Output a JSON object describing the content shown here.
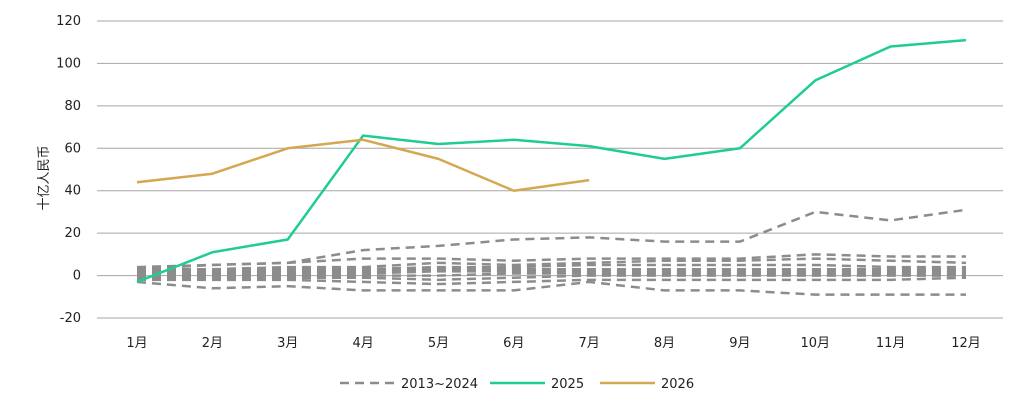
{
  "chart_data": {
    "type": "line",
    "ylabel": "十亿人民币",
    "xlabel": "",
    "categories": [
      "1月",
      "2月",
      "3月",
      "4月",
      "5月",
      "6月",
      "7月",
      "8月",
      "9月",
      "10月",
      "11月",
      "12月"
    ],
    "ylim": [
      -20,
      120
    ],
    "yticks": [
      120,
      100,
      80,
      60,
      40,
      20,
      0,
      -20
    ],
    "grid": "horizontal",
    "legend_position": "bottom",
    "legend": [
      "2013~2024",
      "2025",
      "2026"
    ],
    "series": [
      {
        "name": "2025",
        "color": "#1fce8e",
        "style": "solid",
        "values": [
          -3,
          11,
          17,
          66,
          62,
          64,
          61,
          55,
          60,
          92,
          108,
          111
        ]
      },
      {
        "name": "2026",
        "color": "#d4a850",
        "style": "solid",
        "values": [
          44,
          48,
          60,
          64,
          55,
          40,
          45,
          null,
          null,
          null,
          null,
          null
        ]
      },
      {
        "name": "2013~2024",
        "color": "#8c8c8c",
        "style": "dashed",
        "values": [
          3,
          5,
          6,
          12,
          14,
          17,
          18,
          16,
          16,
          30,
          26,
          31
        ]
      },
      {
        "name": "2013~2024",
        "color": "#8c8c8c",
        "style": "dashed",
        "values": [
          -3,
          -6,
          -5,
          -7,
          -7,
          -7,
          -3,
          -7,
          -7,
          -9,
          -9,
          -9
        ]
      },
      {
        "name": "2013~2024",
        "color": "#8c8c8c",
        "style": "dashed",
        "values": [
          4,
          5,
          6,
          8,
          8,
          7,
          8,
          8,
          8,
          10,
          9,
          9
        ]
      },
      {
        "name": "2013~2024",
        "color": "#8c8c8c",
        "style": "dashed",
        "values": [
          3,
          3,
          4,
          4,
          6,
          5,
          6,
          7,
          7,
          8,
          7,
          6
        ]
      },
      {
        "name": "2013~2024",
        "color": "#8c8c8c",
        "style": "dashed",
        "values": [
          2,
          2,
          3,
          3,
          4,
          4,
          5,
          5,
          5,
          5,
          4,
          4
        ]
      },
      {
        "name": "2013~2024",
        "color": "#8c8c8c",
        "style": "dashed",
        "values": [
          1,
          1,
          2,
          2,
          3,
          3,
          3,
          3,
          3,
          3,
          3,
          3
        ]
      },
      {
        "name": "2013~2024",
        "color": "#8c8c8c",
        "style": "dashed",
        "values": [
          0,
          1,
          1,
          1,
          2,
          2,
          2,
          2,
          2,
          2,
          2,
          2
        ]
      },
      {
        "name": "2013~2024",
        "color": "#8c8c8c",
        "style": "dashed",
        "values": [
          -1,
          0,
          0,
          0,
          0,
          1,
          1,
          1,
          1,
          1,
          1,
          1
        ]
      },
      {
        "name": "2013~2024",
        "color": "#8c8c8c",
        "style": "dashed",
        "values": [
          -2,
          -1,
          -1,
          -1,
          -2,
          -1,
          0,
          0,
          0,
          0,
          0,
          0
        ]
      },
      {
        "name": "2013~2024",
        "color": "#8c8c8c",
        "style": "dashed",
        "values": [
          -2,
          -2,
          -2,
          -3,
          -4,
          -3,
          -2,
          -2,
          -2,
          -2,
          -2,
          -1
        ]
      }
    ]
  }
}
